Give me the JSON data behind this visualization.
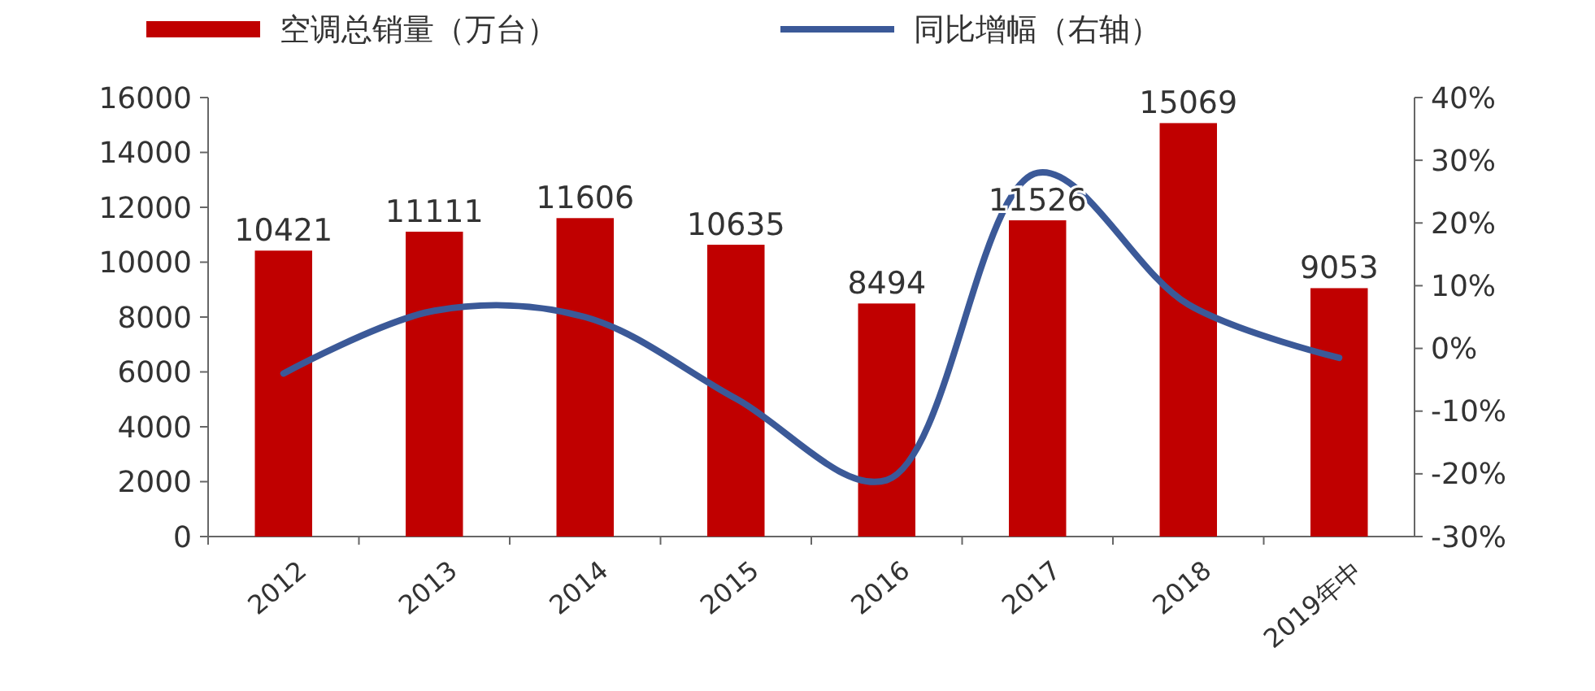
{
  "chart_data": {
    "type": "bar",
    "categories": [
      "2012",
      "2013",
      "2014",
      "2015",
      "2016",
      "2017",
      "2018",
      "2019年中"
    ],
    "series": [
      {
        "name": "空调总销量（万台）",
        "color": "#c00000",
        "values": [
          10421,
          11111,
          11606,
          10635,
          8494,
          11526,
          15069,
          9053
        ],
        "value_labels": [
          "10421",
          "11111",
          "11606",
          "10635",
          "8494",
          "11526",
          "15069",
          "9053"
        ]
      },
      {
        "name": "同比增幅（右轴）",
        "type": "line",
        "axis": "y2",
        "color": "#3b5998",
        "values": [
          -4,
          6,
          5,
          -8,
          -21,
          28,
          7,
          -1.5
        ]
      }
    ],
    "ylim": [
      0,
      16000
    ],
    "yticks": [
      0,
      2000,
      4000,
      6000,
      8000,
      10000,
      12000,
      14000,
      16000
    ],
    "y2lim": [
      -30,
      40
    ],
    "y2ticks": [
      {
        "value": -30,
        "label": "-30%"
      },
      {
        "value": -20,
        "label": "-20%"
      },
      {
        "value": -10,
        "label": "-10%"
      },
      {
        "value": 0,
        "label": "0%"
      },
      {
        "value": 10,
        "label": "10%"
      },
      {
        "value": 20,
        "label": "20%"
      },
      {
        "value": 30,
        "label": "30%"
      },
      {
        "value": 40,
        "label": "40%"
      }
    ],
    "legend": "top",
    "grid": false,
    "marker": "none",
    "line_style": "solid"
  }
}
